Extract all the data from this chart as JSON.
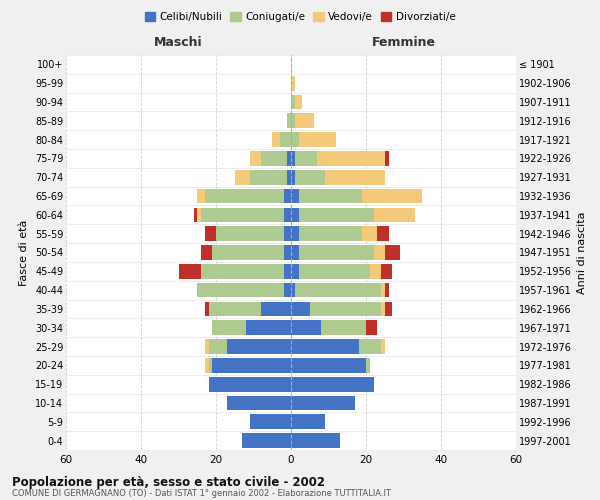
{
  "age_groups": [
    "0-4",
    "5-9",
    "10-14",
    "15-19",
    "20-24",
    "25-29",
    "30-34",
    "35-39",
    "40-44",
    "45-49",
    "50-54",
    "55-59",
    "60-64",
    "65-69",
    "70-74",
    "75-79",
    "80-84",
    "85-89",
    "90-94",
    "95-99",
    "100+"
  ],
  "birth_years": [
    "1997-2001",
    "1992-1996",
    "1987-1991",
    "1982-1986",
    "1977-1981",
    "1972-1976",
    "1967-1971",
    "1962-1966",
    "1957-1961",
    "1952-1956",
    "1947-1951",
    "1942-1946",
    "1937-1941",
    "1932-1936",
    "1927-1931",
    "1922-1926",
    "1917-1921",
    "1912-1916",
    "1907-1911",
    "1902-1906",
    "≤ 1901"
  ],
  "males": {
    "celibi": [
      13,
      11,
      17,
      22,
      21,
      17,
      12,
      8,
      2,
      2,
      2,
      2,
      2,
      2,
      1,
      1,
      0,
      0,
      0,
      0,
      0
    ],
    "coniugati": [
      0,
      0,
      0,
      0,
      1,
      5,
      9,
      14,
      23,
      22,
      19,
      18,
      22,
      21,
      10,
      7,
      3,
      1,
      0,
      0,
      0
    ],
    "vedovi": [
      0,
      0,
      0,
      0,
      1,
      1,
      0,
      0,
      0,
      0,
      0,
      0,
      1,
      2,
      4,
      3,
      2,
      0,
      0,
      0,
      0
    ],
    "divorziati": [
      0,
      0,
      0,
      0,
      0,
      0,
      0,
      1,
      0,
      6,
      3,
      3,
      1,
      0,
      0,
      0,
      0,
      0,
      0,
      0,
      0
    ]
  },
  "females": {
    "nubili": [
      13,
      9,
      17,
      22,
      20,
      18,
      8,
      5,
      1,
      2,
      2,
      2,
      2,
      2,
      1,
      1,
      0,
      0,
      0,
      0,
      0
    ],
    "coniugate": [
      0,
      0,
      0,
      0,
      1,
      6,
      12,
      19,
      23,
      19,
      20,
      17,
      20,
      17,
      8,
      6,
      2,
      1,
      1,
      0,
      0
    ],
    "vedove": [
      0,
      0,
      0,
      0,
      0,
      1,
      0,
      1,
      1,
      3,
      3,
      4,
      11,
      16,
      16,
      18,
      10,
      5,
      2,
      1,
      0
    ],
    "divorziate": [
      0,
      0,
      0,
      0,
      0,
      0,
      3,
      2,
      1,
      3,
      4,
      3,
      0,
      0,
      0,
      1,
      0,
      0,
      0,
      0,
      0
    ]
  },
  "colors": {
    "celibi_nubili": "#4472C4",
    "coniugati": "#AECA91",
    "vedovi": "#F5C97A",
    "divorziati": "#C0302A"
  },
  "xlim": 60,
  "title": "Popolazione per età, sesso e stato civile - 2002",
  "subtitle": "COMUNE DI GERMAGNANO (TO) - Dati ISTAT 1° gennaio 2002 - Elaborazione TUTTITALIA.IT",
  "ylabel": "Fasce di età",
  "right_label": "Anni di nascita",
  "maschi_label": "Maschi",
  "femmine_label": "Femmine",
  "legend_labels": [
    "Celibi/Nubili",
    "Coniugati/e",
    "Vedovi/e",
    "Divorziati/e"
  ],
  "bg_color": "#f0f0f0",
  "plot_bg": "#ffffff"
}
